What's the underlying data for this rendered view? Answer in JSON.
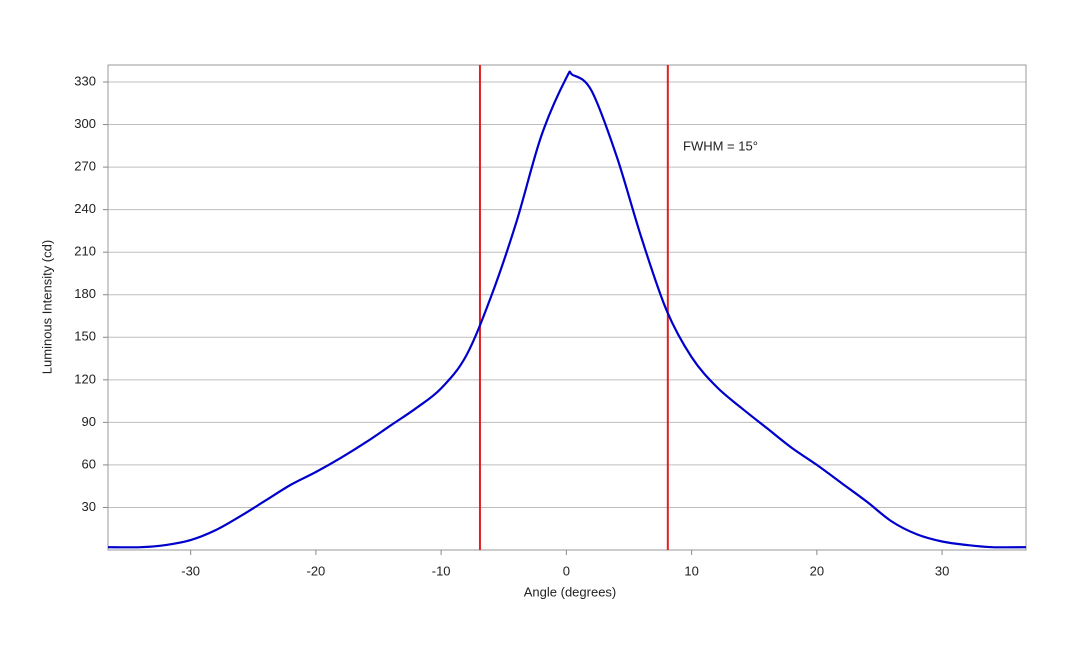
{
  "chart_data": {
    "type": "line",
    "x_label": "Angle (degrees)",
    "y_label": "Luminous Intensity (cd)",
    "annotation": "FWHM = 15°",
    "x": [
      -36.6,
      -34,
      -32,
      -30,
      -28,
      -26,
      -24,
      -22,
      -20,
      -18,
      -16,
      -14,
      -12,
      -10,
      -8,
      -6,
      -4,
      -2,
      0,
      0.5,
      2,
      4,
      6,
      8,
      10,
      12,
      14,
      16,
      18,
      20,
      22,
      24,
      26,
      28,
      30,
      32,
      34,
      36.7
    ],
    "series": [
      {
        "color": "#0000cc",
        "values": [
          2,
          2,
          3.5,
          7,
          14,
          24,
          35,
          46,
          55,
          65,
          76,
          88,
          100,
          114,
          137,
          179,
          231,
          292,
          333,
          335,
          324,
          278,
          220,
          169,
          136,
          115,
          100,
          86,
          72,
          60,
          47,
          34,
          20,
          11,
          6,
          3.5,
          2,
          2
        ]
      }
    ],
    "vlines": [
      {
        "value": -6.9,
        "color": "#e02020"
      },
      {
        "value": 8.1,
        "color": "#e02020"
      }
    ],
    "xlim": [
      -36.6,
      36.7
    ],
    "ylim": [
      0,
      342
    ],
    "xticks": [
      -30,
      -20,
      -10,
      0,
      10,
      20,
      30
    ],
    "yticks": [
      30,
      60,
      90,
      120,
      150,
      180,
      210,
      240,
      270,
      300,
      330
    ],
    "grid": true
  }
}
